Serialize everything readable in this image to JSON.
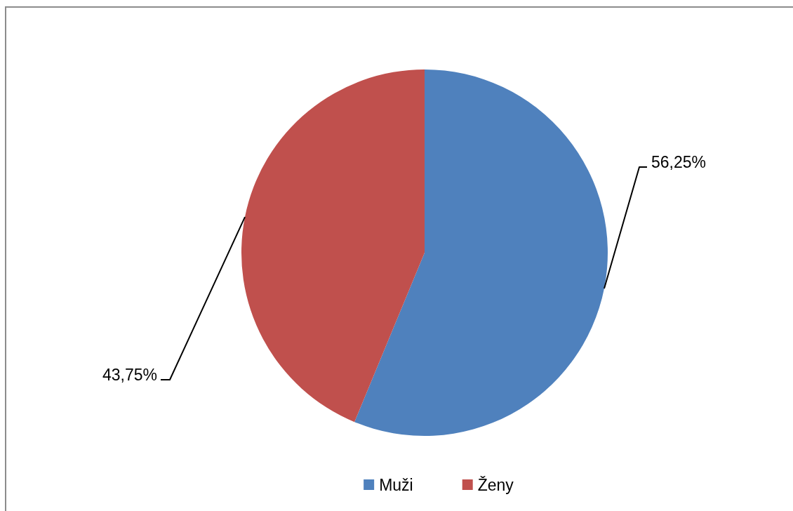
{
  "chart_data": {
    "type": "pie",
    "categories": [
      "Muži",
      "Ženy"
    ],
    "values": [
      56.25,
      43.75
    ],
    "colors": [
      "#4f81bd",
      "#c0504d"
    ],
    "value_labels": [
      "56,25%",
      "43,75%"
    ],
    "legend": "bottom"
  }
}
